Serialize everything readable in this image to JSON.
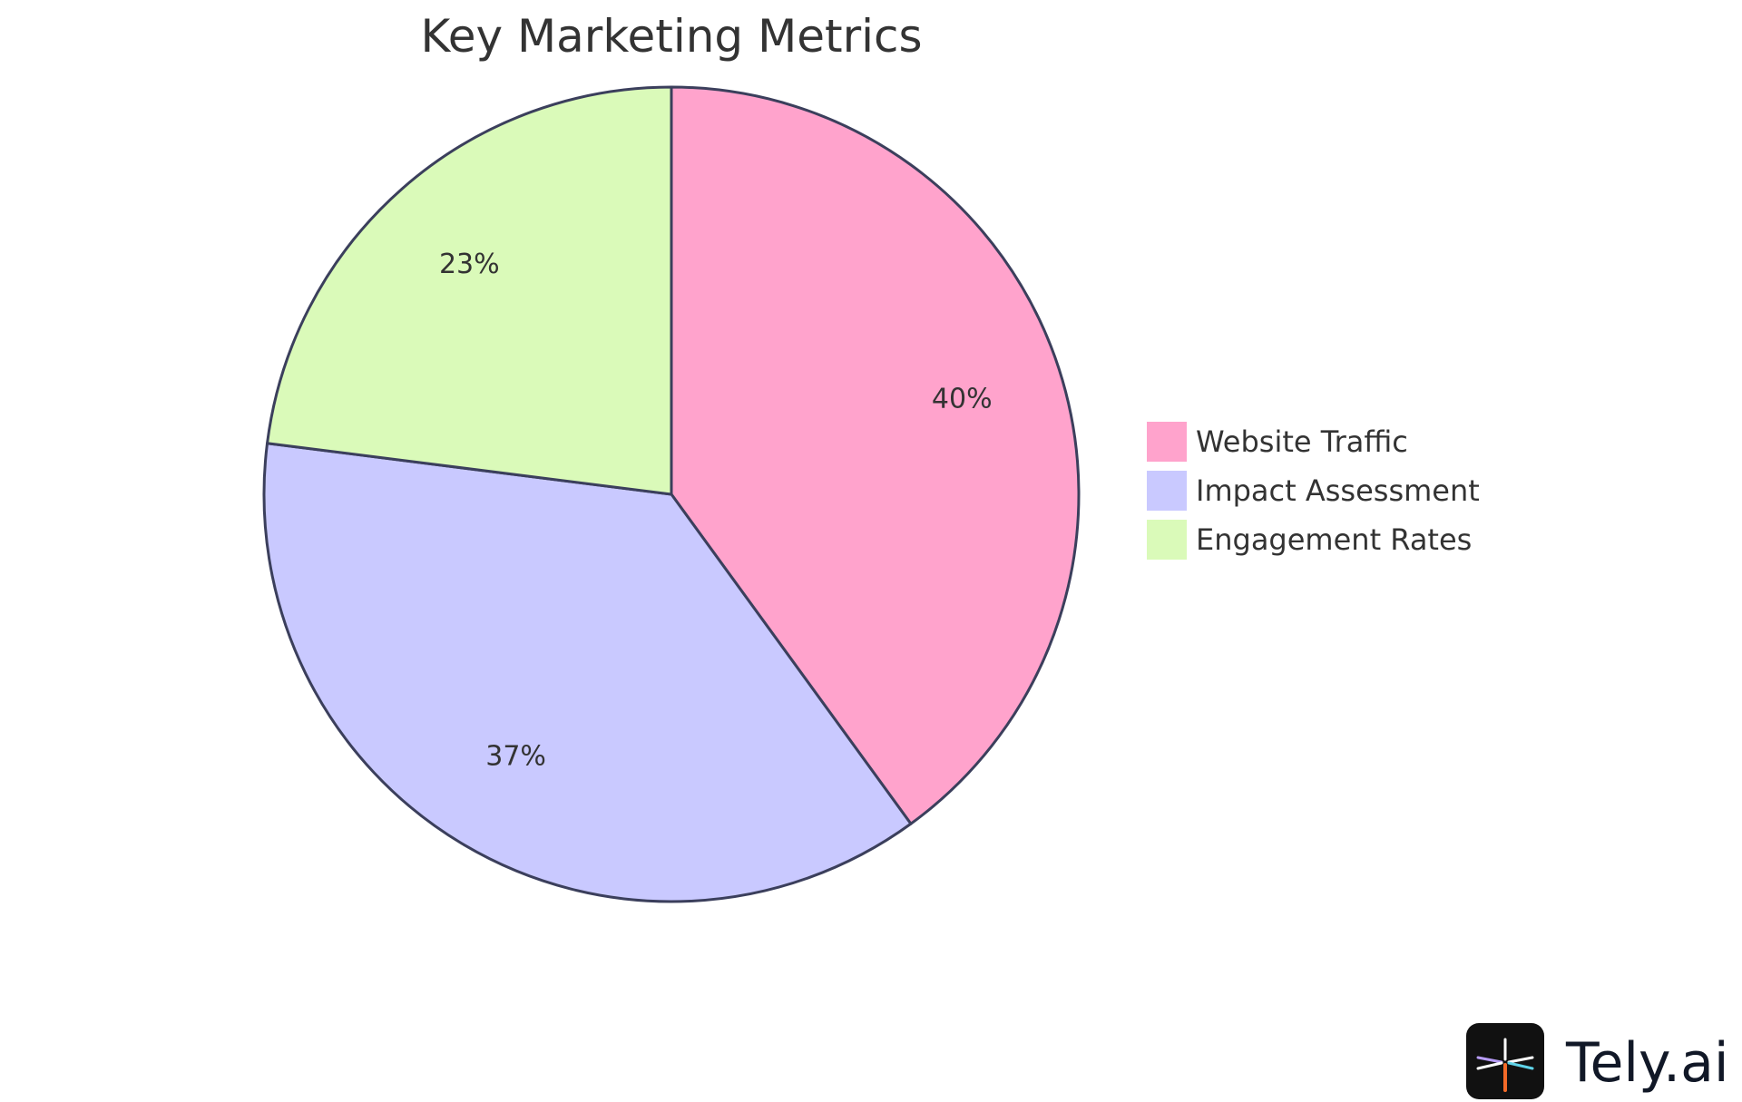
{
  "chart_data": {
    "type": "pie",
    "title": "Key Marketing Metrics",
    "slices": [
      {
        "name": "Website Traffic",
        "value": 40,
        "label": "40%",
        "color": "#ffa3cc"
      },
      {
        "name": "Impact Assessment",
        "value": 37,
        "label": "37%",
        "color": "#c9c9ff"
      },
      {
        "name": "Engagement Rates",
        "value": 23,
        "label": "23%",
        "color": "#dafab9"
      }
    ],
    "start_angle": "12 o'clock",
    "direction": "clockwise",
    "legend": "right",
    "stroke_color": "#3b3f5c"
  },
  "branding": {
    "logo_text": "Tely.ai",
    "logo_icon": "tely-logo-icon"
  }
}
